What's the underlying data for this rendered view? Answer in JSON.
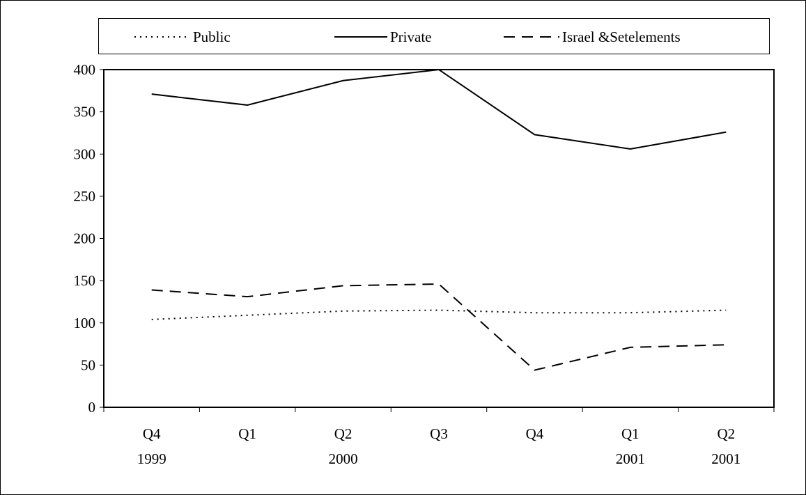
{
  "chart_data": {
    "type": "line",
    "title": "",
    "xlabel": "",
    "ylabel": "",
    "ylim": [
      0,
      400
    ],
    "yticks": [
      "0",
      "50",
      "100",
      "150",
      "200",
      "250",
      "300",
      "350",
      "400"
    ],
    "categories": [
      {
        "quarter": "Q4",
        "year": "1999"
      },
      {
        "quarter": "Q1",
        "year": ""
      },
      {
        "quarter": "Q2",
        "year": "2000"
      },
      {
        "quarter": "Q3",
        "year": ""
      },
      {
        "quarter": "Q4",
        "year": ""
      },
      {
        "quarter": "Q1",
        "year": "2001"
      },
      {
        "quarter": "Q2",
        "year": "2001"
      }
    ],
    "series": [
      {
        "name": "Public",
        "dash": "dotted",
        "values": [
          104,
          109,
          114,
          115,
          112,
          112,
          115
        ]
      },
      {
        "name": "Private",
        "dash": "solid",
        "values": [
          371,
          358,
          387,
          400,
          323,
          306,
          326
        ]
      },
      {
        "name": "Israel &Setelements",
        "dash": "dashed",
        "values": [
          139,
          131,
          144,
          146,
          44,
          71,
          74
        ]
      }
    ],
    "legend_position": "top",
    "grid": false
  }
}
